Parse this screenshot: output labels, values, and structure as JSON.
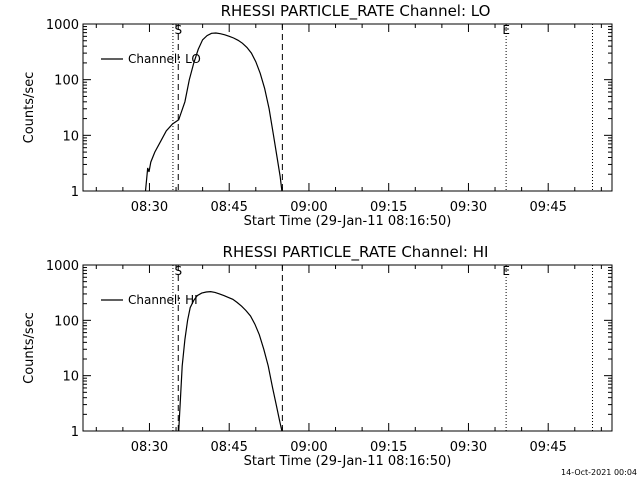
{
  "chart_data": [
    {
      "type": "line",
      "title": "RHESSI PARTICLE_RATE Channel: LO",
      "xlabel": "Start Time (29-Jan-11 08:16:50)",
      "ylabel": "Counts/sec",
      "yscale": "log",
      "ylim": [
        1,
        1000
      ],
      "y_ticks": [
        "1",
        "10",
        "100",
        "1000"
      ],
      "x_ticks": [
        "08:30",
        "08:45",
        "09:00",
        "09:15",
        "09:30",
        "09:45"
      ],
      "legend": {
        "position": "top-left",
        "entries": [
          "Channel: LO"
        ]
      },
      "markers": [
        {
          "label": "S",
          "time": "08:35:25"
        },
        {
          "label": "E",
          "time": "09:37:05"
        }
      ],
      "dashed_lines": [
        "08:35:25",
        "08:55:00"
      ],
      "dotted_lines": [
        "08:34:25",
        "09:37:05",
        "09:53:20"
      ],
      "series": [
        {
          "name": "Channel: LO",
          "x": [
            "08:29:15",
            "08:29:40",
            "08:29:55",
            "08:30:15",
            "08:31:00",
            "08:32:10",
            "08:33:10",
            "08:34:20",
            "08:35:30",
            "08:36:40",
            "08:37:30",
            "08:38:20",
            "08:39:10",
            "08:40:00",
            "08:40:50",
            "08:41:40",
            "08:42:30",
            "08:43:20",
            "08:44:10",
            "08:45:00",
            "08:45:50",
            "08:46:40",
            "08:47:30",
            "08:48:20",
            "08:49:10",
            "08:50:00",
            "08:50:50",
            "08:51:40",
            "08:52:30",
            "08:53:20",
            "08:54:00",
            "08:54:35",
            "08:54:55"
          ],
          "values": [
            1,
            2.6,
            2.2,
            3.3,
            5,
            8,
            12,
            16,
            19,
            40,
            100,
            200,
            350,
            520,
            620,
            680,
            690,
            670,
            640,
            600,
            560,
            510,
            450,
            380,
            300,
            210,
            130,
            70,
            30,
            10,
            4,
            1.8,
            1
          ]
        }
      ]
    },
    {
      "type": "line",
      "title": "RHESSI PARTICLE_RATE Channel: HI",
      "xlabel": "Start Time (29-Jan-11 08:16:50)",
      "ylabel": "Counts/sec",
      "yscale": "log",
      "ylim": [
        1,
        1000
      ],
      "y_ticks": [
        "1",
        "10",
        "100",
        "1000"
      ],
      "x_ticks": [
        "08:30",
        "08:45",
        "09:00",
        "09:15",
        "09:30",
        "09:45"
      ],
      "legend": {
        "position": "top-left",
        "entries": [
          "Channel: HI"
        ]
      },
      "markers": [
        {
          "label": "S",
          "time": "08:35:25"
        },
        {
          "label": "E",
          "time": "09:37:05"
        }
      ],
      "dashed_lines": [
        "08:35:25",
        "08:55:00"
      ],
      "dotted_lines": [
        "08:34:25",
        "09:37:05",
        "09:53:20"
      ],
      "series": [
        {
          "name": "Channel: HI",
          "x": [
            "08:35:30",
            "08:35:50",
            "08:36:10",
            "08:36:40",
            "08:37:10",
            "08:37:40",
            "08:38:20",
            "08:39:00",
            "08:39:50",
            "08:40:40",
            "08:41:30",
            "08:42:20",
            "08:43:10",
            "08:44:00",
            "08:44:50",
            "08:45:40",
            "08:46:30",
            "08:47:20",
            "08:48:10",
            "08:49:00",
            "08:49:50",
            "08:50:40",
            "08:51:30",
            "08:52:20",
            "08:53:10",
            "08:53:50",
            "08:54:30",
            "08:54:55"
          ],
          "values": [
            1,
            4,
            15,
            45,
            100,
            170,
            230,
            280,
            310,
            325,
            330,
            320,
            300,
            280,
            260,
            240,
            210,
            180,
            150,
            120,
            85,
            55,
            30,
            15,
            6,
            3,
            1.5,
            1
          ]
        }
      ]
    }
  ],
  "footer": {
    "timestamp": "14-Oct-2021 00:04"
  }
}
